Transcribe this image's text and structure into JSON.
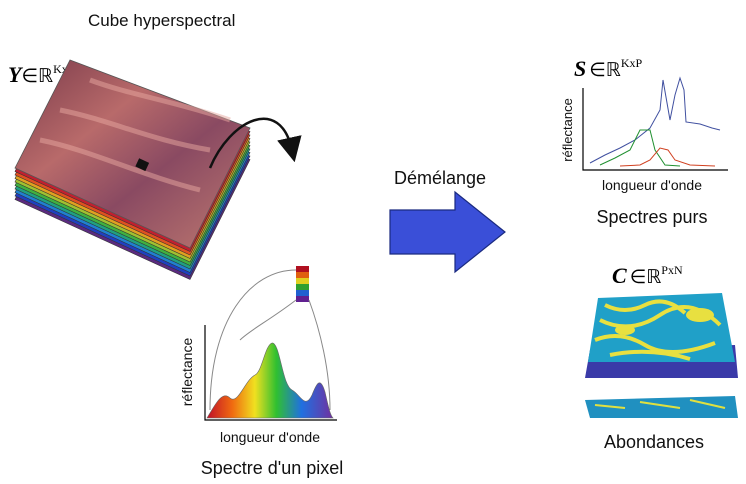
{
  "cube": {
    "title": "Cube hyperspectral",
    "symbol": "Y",
    "set": "∈ℝ",
    "superscript": "KxN"
  },
  "pixel_spectrum": {
    "y_label": "réflectance",
    "x_label": "longueur d'onde",
    "caption": "Spectre d'un pixel"
  },
  "process": {
    "label": "Démélange"
  },
  "endmembers": {
    "symbol": "S",
    "set": "∈ℝ",
    "superscript": "KxP",
    "y_label": "réflectance",
    "x_label": "longueur d'onde",
    "caption": "Spectres purs"
  },
  "abundances": {
    "symbol": "C",
    "set": "∈ℝ",
    "superscript": "PxN",
    "caption": "Abondances"
  }
}
